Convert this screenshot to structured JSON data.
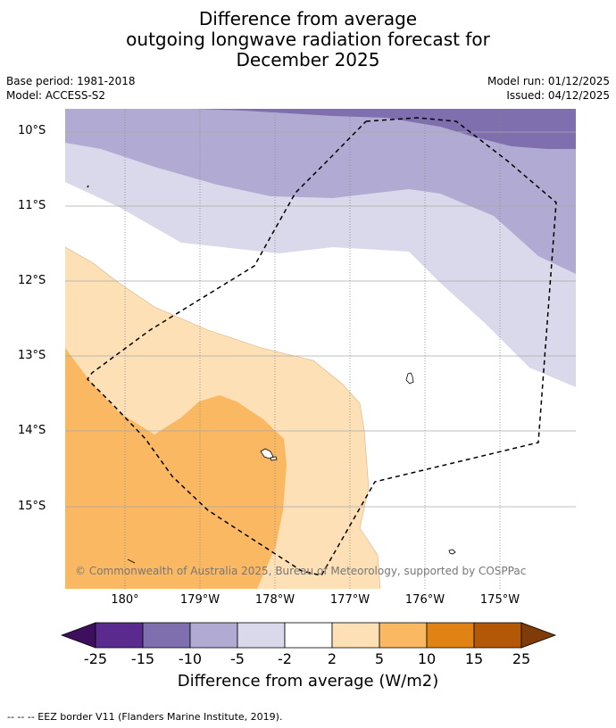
{
  "title": {
    "line1": "Difference from average",
    "line2": "outgoing longwave radiation forecast for",
    "line3": "December 2025"
  },
  "meta": {
    "base_period": "Base period: 1981-2018",
    "model": "Model: ACCESS-S2",
    "model_run": "Model run: 01/12/2025",
    "issued": "Issued: 04/12/2025"
  },
  "axes": {
    "lat_labels": [
      "10°S",
      "11°S",
      "12°S",
      "13°S",
      "14°S",
      "15°S"
    ],
    "lon_labels": [
      "180°",
      "179°W",
      "178°W",
      "177°W",
      "176°W",
      "175°W"
    ]
  },
  "copyright": "© Commonwealth of Australia 2025, Bureau of Meteorology, supported by COSPPac",
  "colorbar": {
    "title": "Difference from average (W/m2)",
    "ticks": [
      "-25",
      "-15",
      "-10",
      "-5",
      "-2",
      "2",
      "5",
      "10",
      "15",
      "25"
    ],
    "colors": [
      "#3f0f5f",
      "#5a2a8e",
      "#7f6fae",
      "#b1aad2",
      "#d9d9eb",
      "#ffffff",
      "#fde0b6",
      "#fbb862",
      "#e08214",
      "#b35806",
      "#7f3b08"
    ]
  },
  "footer": "--  --  -- EEZ border V11 (Flanders Marine Institute, 2019)."
}
